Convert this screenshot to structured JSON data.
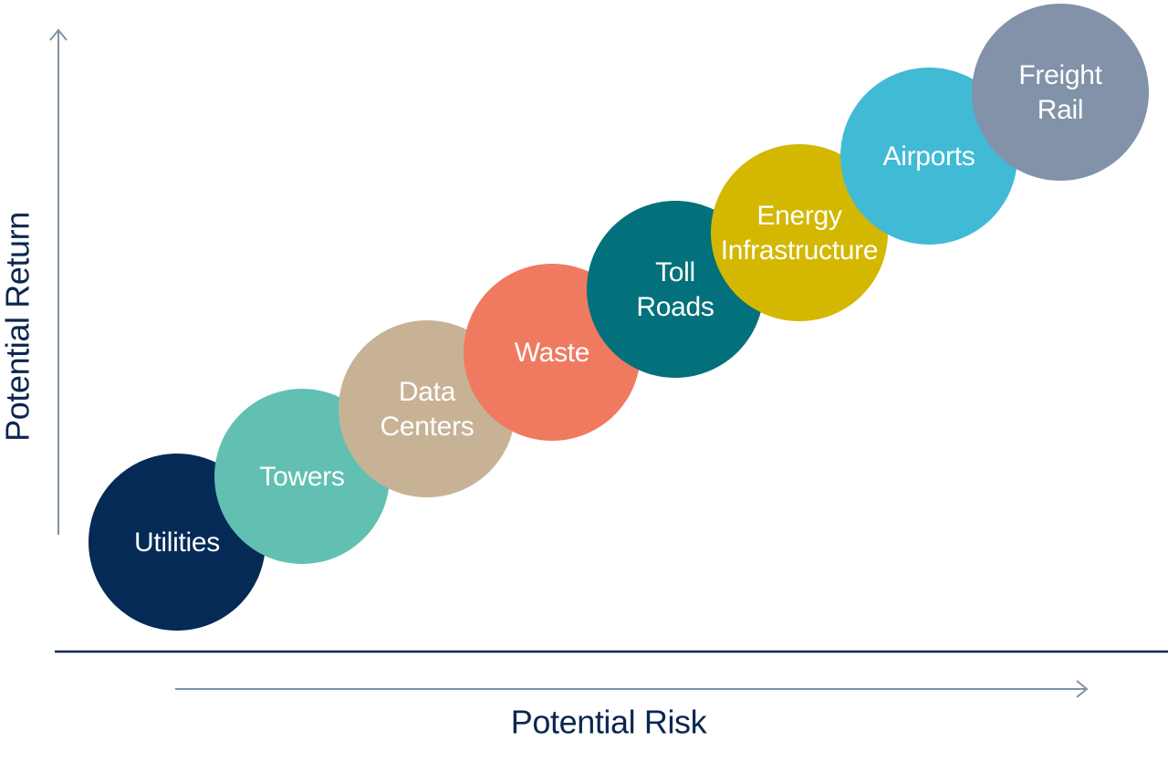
{
  "diagram": {
    "x_axis_label": "Potential Risk",
    "y_axis_label": "Potential Return",
    "colors": {
      "axis_arrow": "#7d94a8",
      "baseline": "#0b2650",
      "axis_title": "#0b2650"
    },
    "items": [
      {
        "label_lines": [
          "Utilities"
        ],
        "color": "#052a56"
      },
      {
        "label_lines": [
          "Towers"
        ],
        "color": "#61c0b2"
      },
      {
        "label_lines": [
          "Data",
          "Centers"
        ],
        "color": "#c8b295"
      },
      {
        "label_lines": [
          "Waste"
        ],
        "color": "#ef7a5f"
      },
      {
        "label_lines": [
          "Toll",
          "Roads"
        ],
        "color": "#02717b"
      },
      {
        "label_lines": [
          "Energy",
          "Infrastructure"
        ],
        "color": "#d3b700"
      },
      {
        "label_lines": [
          "Airports"
        ],
        "color": "#41bad6"
      },
      {
        "label_lines": [
          "Freight",
          "Rail"
        ],
        "color": "#8192a9"
      }
    ]
  }
}
